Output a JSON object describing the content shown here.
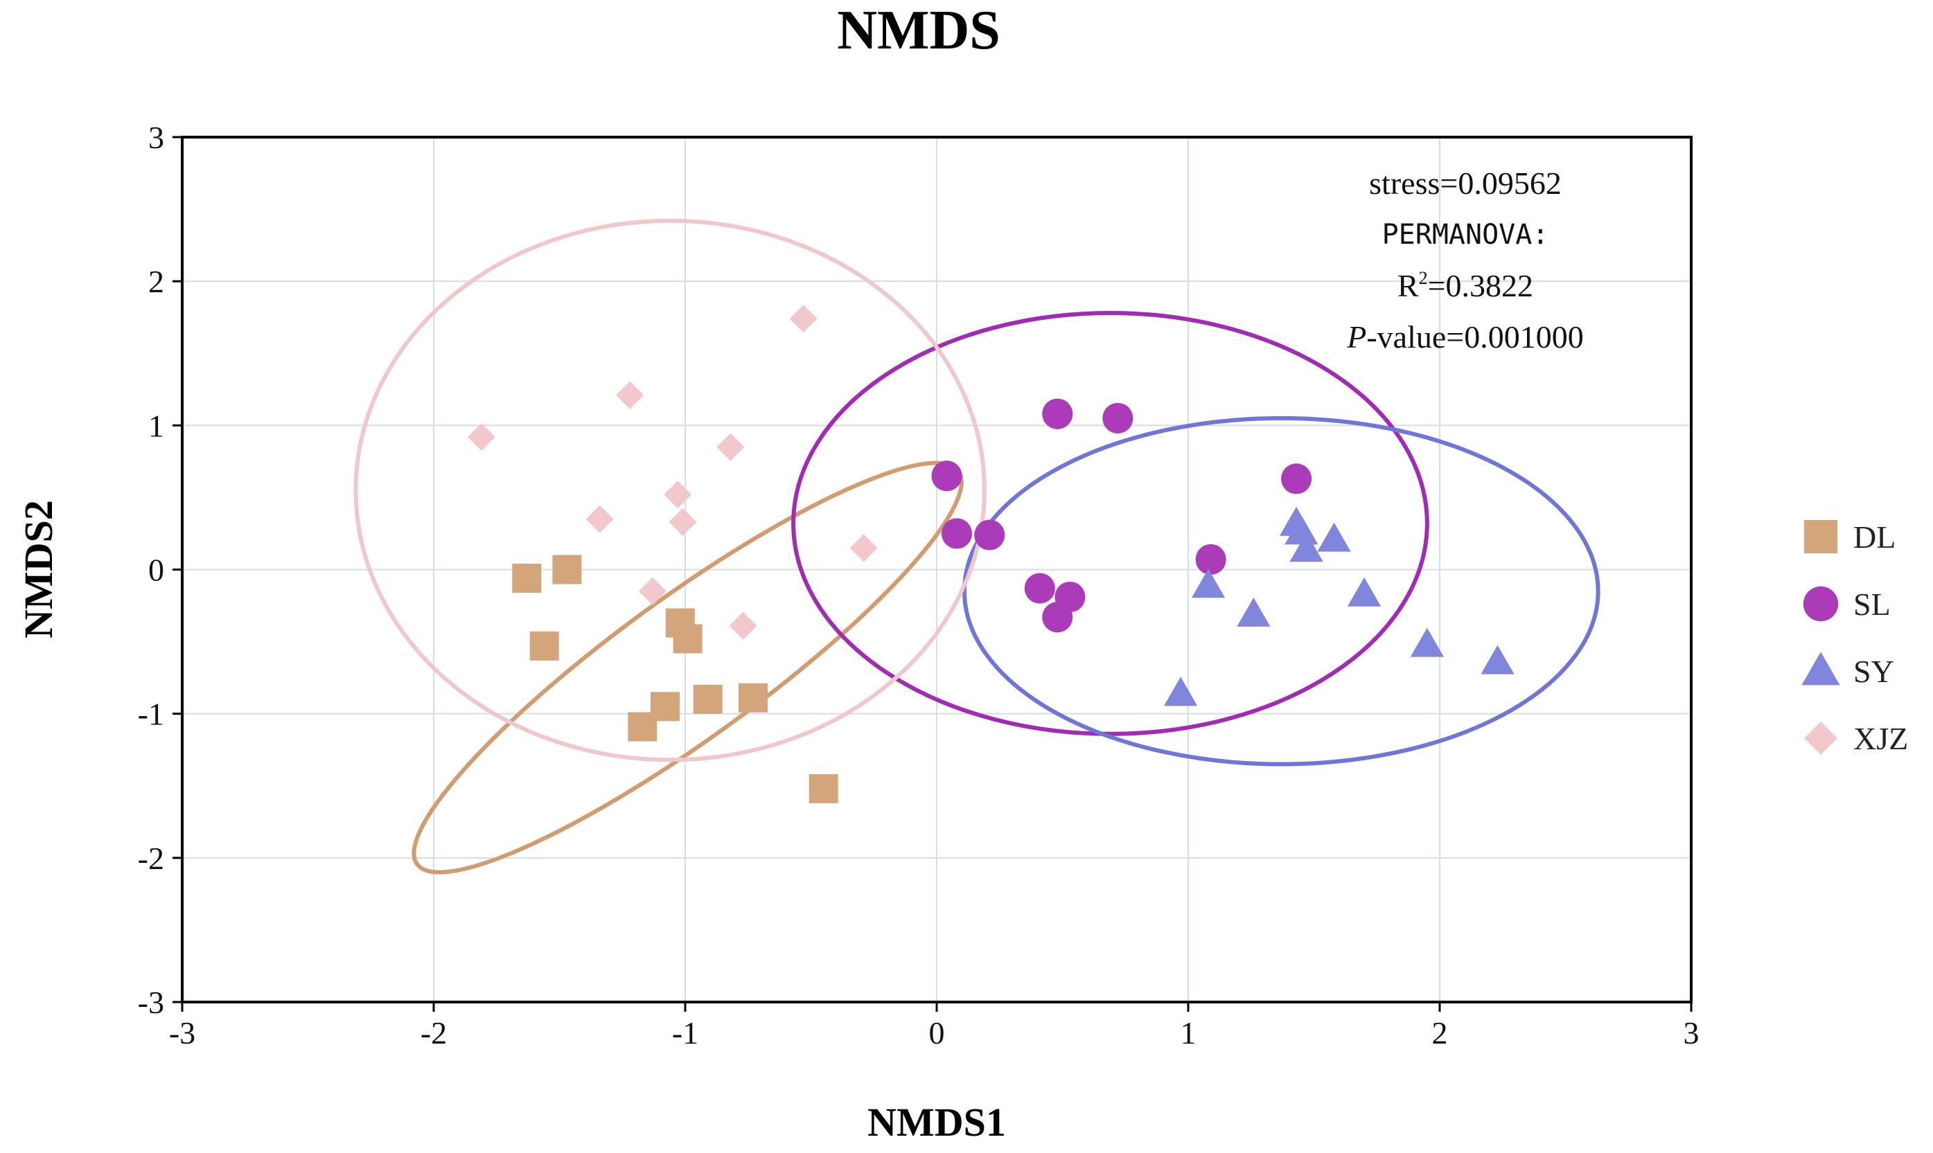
{
  "chart_data": {
    "type": "scatter",
    "title": "NMDS",
    "xlabel": "NMDS1",
    "ylabel": "NMDS2",
    "xlim": [
      -3,
      3
    ],
    "ylim": [
      -3,
      3
    ],
    "xticks": [
      -3,
      -2,
      -1,
      0,
      1,
      2,
      3
    ],
    "yticks": [
      -3,
      -2,
      -1,
      0,
      1,
      2,
      3
    ],
    "grid": true,
    "legend_position": "right",
    "annotations": {
      "stress": "stress=0.09562",
      "permanova": "PERMANOVA:",
      "r2_prefix": "R",
      "r2_sup": "2",
      "r2_value": "=0.3822",
      "p_italic": "P",
      "p_value": "-value=0.001000"
    },
    "series": [
      {
        "name": "DL",
        "marker": "square",
        "color": "#D4A57A",
        "points": [
          [
            -1.63,
            -0.06
          ],
          [
            -1.47,
            0.0
          ],
          [
            -1.56,
            -0.53
          ],
          [
            -1.02,
            -0.37
          ],
          [
            -0.99,
            -0.48
          ],
          [
            -0.73,
            -0.89
          ],
          [
            -0.91,
            -0.9
          ],
          [
            -1.08,
            -0.95
          ],
          [
            -1.17,
            -1.09
          ],
          [
            -0.45,
            -1.52
          ]
        ],
        "ellipse": {
          "cx": -0.99,
          "cy": -0.68,
          "rx": 1.33,
          "ry": 0.49,
          "angle_deg": -36,
          "stroke": "#D29C6E"
        }
      },
      {
        "name": "SL",
        "marker": "circle",
        "color": "#AB3BB8",
        "points": [
          [
            0.48,
            1.08
          ],
          [
            0.72,
            1.05
          ],
          [
            0.04,
            0.65
          ],
          [
            0.08,
            0.25
          ],
          [
            0.21,
            0.24
          ],
          [
            1.43,
            0.63
          ],
          [
            1.09,
            0.07
          ],
          [
            0.41,
            -0.13
          ],
          [
            0.53,
            -0.19
          ],
          [
            0.48,
            -0.33
          ]
        ],
        "ellipse": {
          "cx": 0.69,
          "cy": 0.32,
          "rx": 1.26,
          "ry": 1.46,
          "angle_deg": 0,
          "stroke": "#A12BB4"
        }
      },
      {
        "name": "SY",
        "marker": "triangle",
        "color": "#7F86DC",
        "points": [
          [
            1.43,
            0.32
          ],
          [
            1.45,
            0.26
          ],
          [
            1.58,
            0.21
          ],
          [
            1.47,
            0.14
          ],
          [
            1.08,
            -0.11
          ],
          [
            1.26,
            -0.31
          ],
          [
            1.7,
            -0.17
          ],
          [
            1.95,
            -0.52
          ],
          [
            2.23,
            -0.64
          ],
          [
            0.97,
            -0.86
          ]
        ],
        "ellipse": {
          "cx": 1.37,
          "cy": -0.15,
          "rx": 1.26,
          "ry": 1.2,
          "angle_deg": 0,
          "stroke": "#6E76D8"
        }
      },
      {
        "name": "XJZ",
        "marker": "diamond",
        "color": "#F2C8CC",
        "points": [
          [
            -0.53,
            1.74
          ],
          [
            -1.22,
            1.21
          ],
          [
            -1.81,
            0.92
          ],
          [
            -0.82,
            0.85
          ],
          [
            -1.03,
            0.52
          ],
          [
            -1.34,
            0.35
          ],
          [
            -1.01,
            0.33
          ],
          [
            -0.29,
            0.15
          ],
          [
            -1.13,
            -0.15
          ],
          [
            -0.77,
            -0.39
          ]
        ],
        "ellipse": {
          "cx": -1.06,
          "cy": 0.55,
          "rx": 1.25,
          "ry": 1.87,
          "angle_deg": 0,
          "stroke": "#F0C7CB"
        }
      }
    ]
  }
}
